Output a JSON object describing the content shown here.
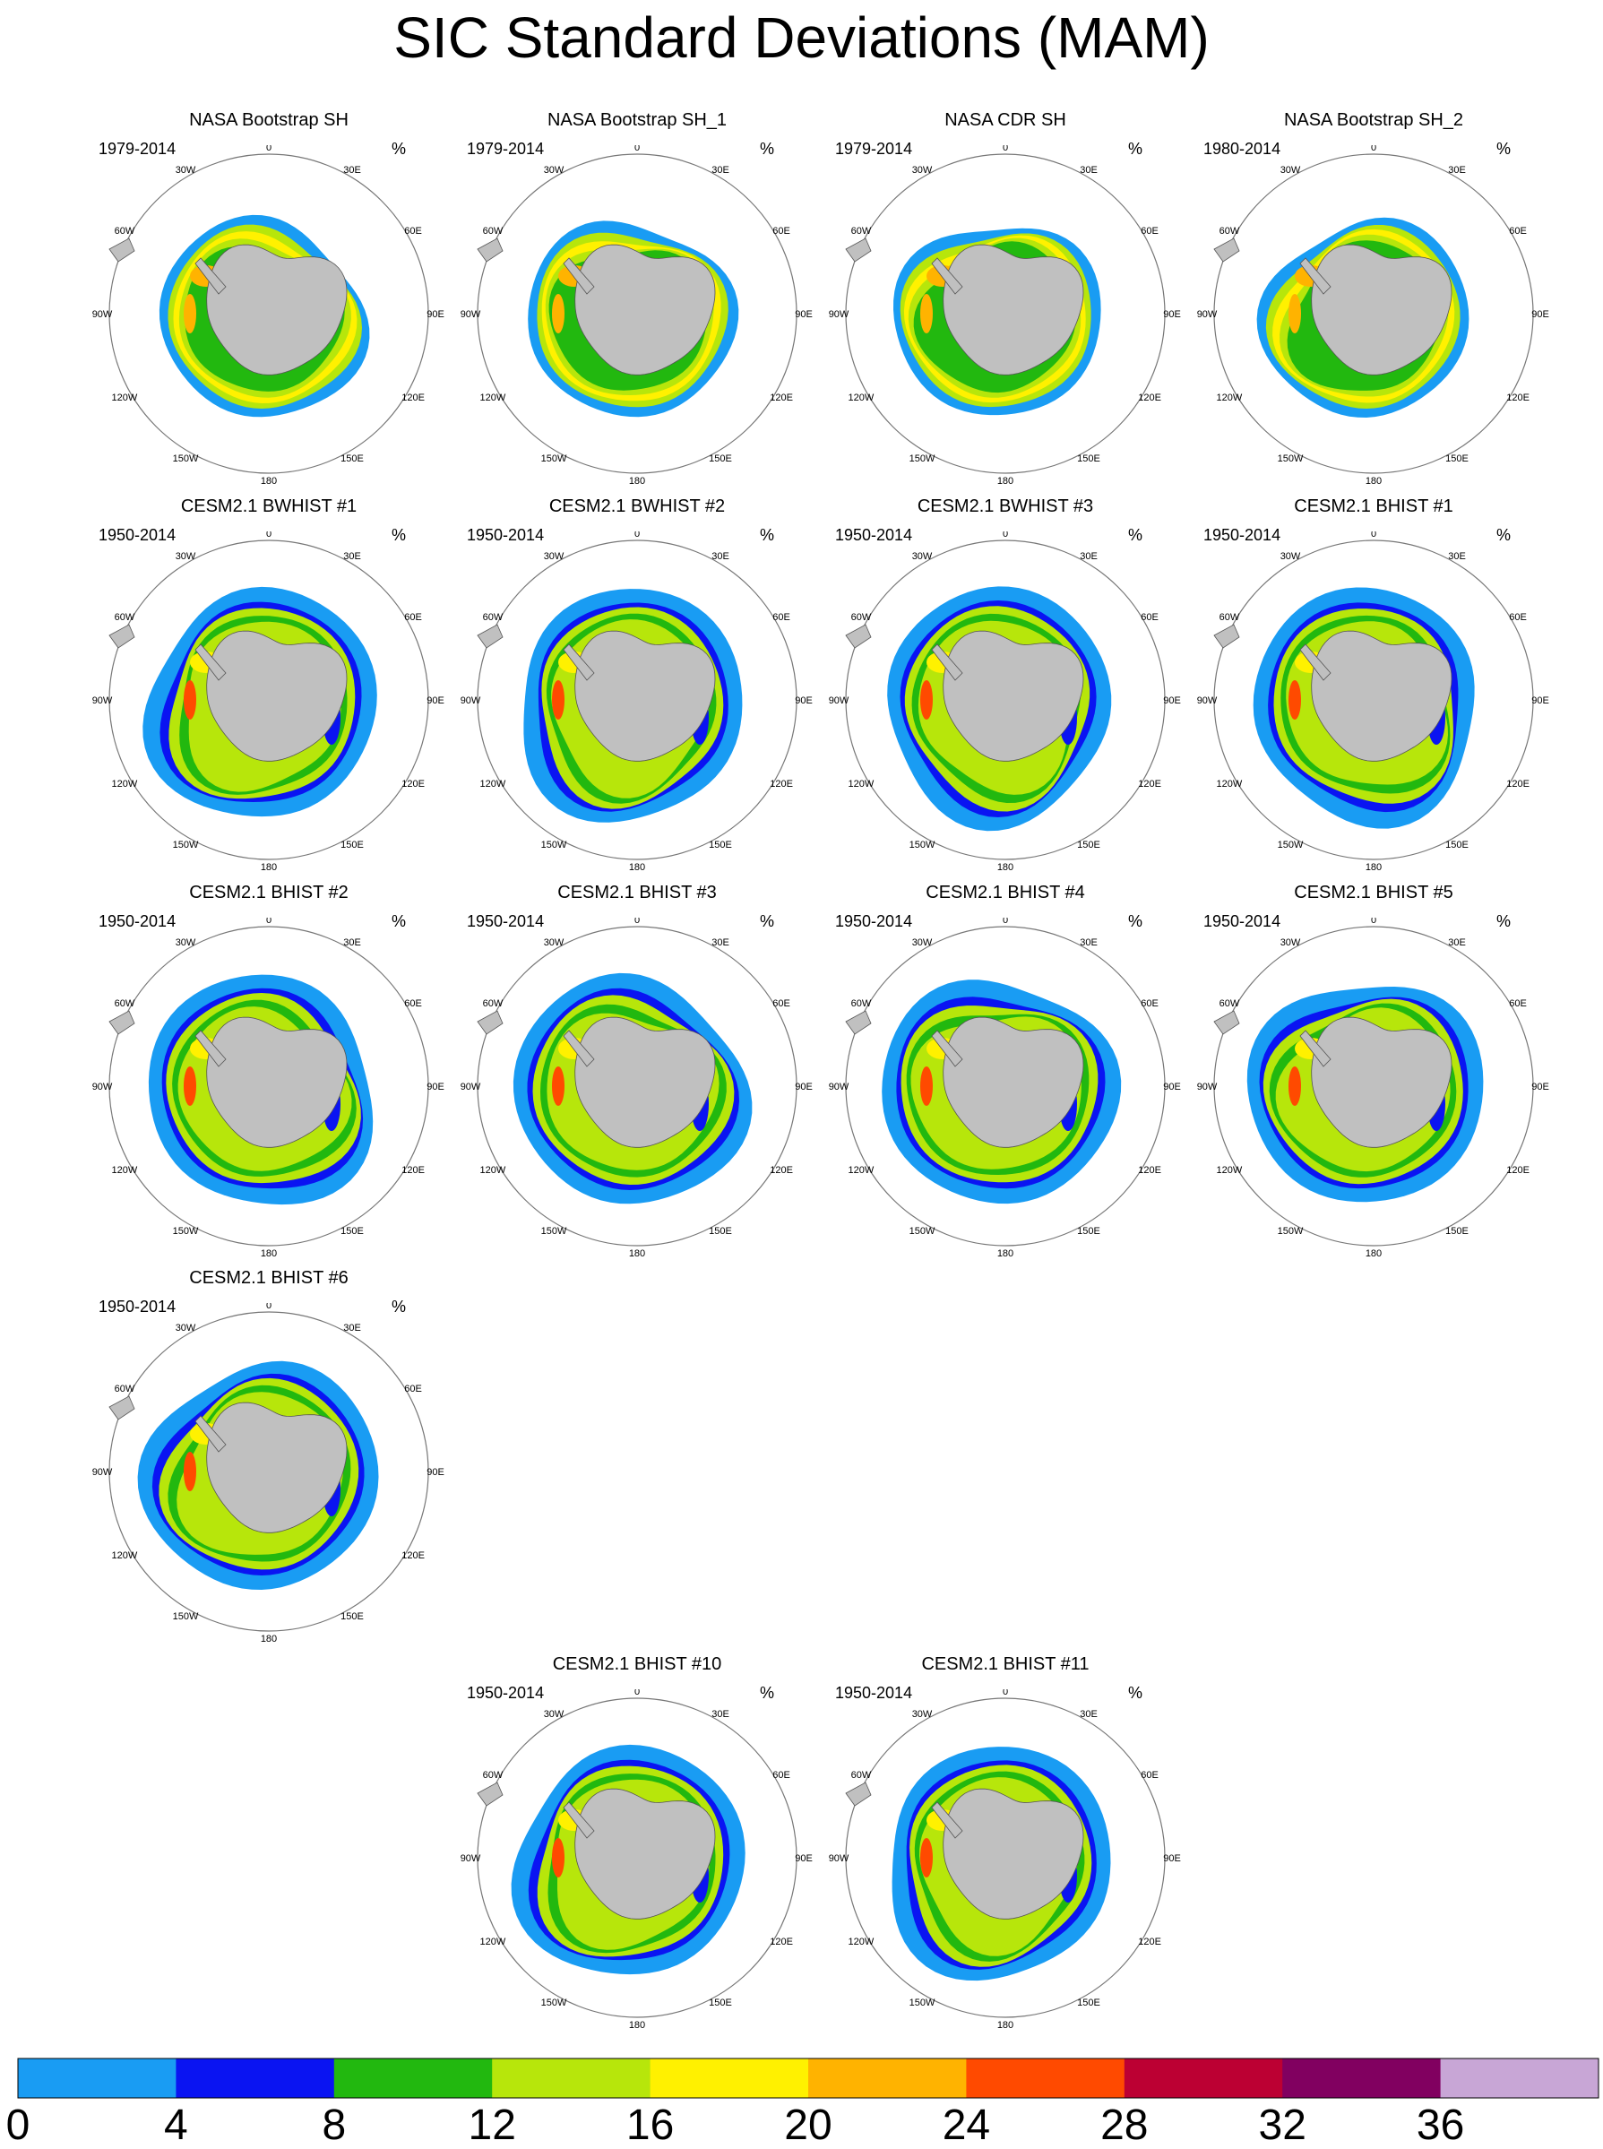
{
  "chart_data": {
    "type": "heatmap",
    "title": "SIC Standard Deviations (MAM)",
    "projection": "South polar stereographic",
    "longitude_labels": [
      "0",
      "30E",
      "60E",
      "90E",
      "120E",
      "150E",
      "180",
      "150W",
      "120W",
      "90W",
      "60W",
      "30W"
    ],
    "unit": "%",
    "colorbar": {
      "levels": [
        "0",
        "4",
        "8",
        "12",
        "16",
        "20",
        "24",
        "28",
        "32",
        "36"
      ],
      "colors": [
        "#199cf3",
        "#0a14f2",
        "#22b80f",
        "#b7e60b",
        "#fff100",
        "#ffb300",
        "#ff4a00",
        "#bc0033",
        "#810060",
        "#c8a6d6"
      ]
    },
    "panels": [
      {
        "title": "NASA Bootstrap SH",
        "years": "1979-2014",
        "unit": "%"
      },
      {
        "title": "NASA Bootstrap SH_1",
        "years": "1979-2014",
        "unit": "%"
      },
      {
        "title": "NASA CDR SH",
        "years": "1979-2014",
        "unit": "%"
      },
      {
        "title": "NASA Bootstrap SH_2",
        "years": "1980-2014",
        "unit": "%"
      },
      {
        "title": "CESM2.1 BWHIST #1",
        "years": "1950-2014",
        "unit": "%"
      },
      {
        "title": "CESM2.1 BWHIST #2",
        "years": "1950-2014",
        "unit": "%"
      },
      {
        "title": "CESM2.1 BWHIST #3",
        "years": "1950-2014",
        "unit": "%"
      },
      {
        "title": "CESM2.1 BHIST #1",
        "years": "1950-2014",
        "unit": "%"
      },
      {
        "title": "CESM2.1 BHIST #2",
        "years": "1950-2014",
        "unit": "%"
      },
      {
        "title": "CESM2.1 BHIST #3",
        "years": "1950-2014",
        "unit": "%"
      },
      {
        "title": "CESM2.1 BHIST #4",
        "years": "1950-2014",
        "unit": "%"
      },
      {
        "title": "CESM2.1 BHIST #5",
        "years": "1950-2014",
        "unit": "%"
      },
      {
        "title": "CESM2.1 BHIST #6",
        "years": "1950-2014",
        "unit": "%"
      },
      {
        "title": "CESM2.1 BHIST #10",
        "years": "1950-2014",
        "unit": "%"
      },
      {
        "title": "CESM2.1 BHIST #11",
        "years": "1950-2014",
        "unit": "%"
      }
    ]
  }
}
